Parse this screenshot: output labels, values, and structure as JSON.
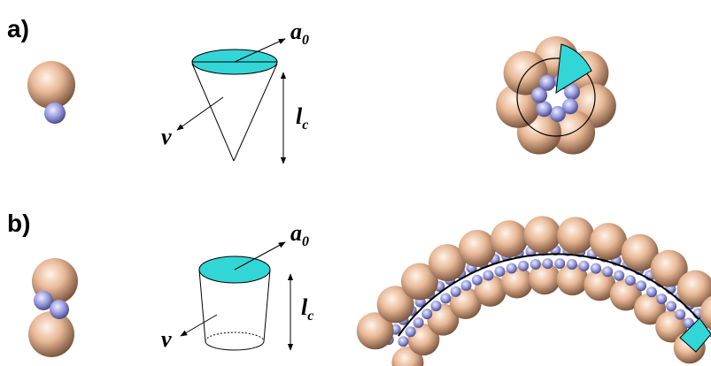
{
  "panels": [
    {
      "label": "a)",
      "area_symbol": "a",
      "area_subscript": "0",
      "volume_symbol": "v",
      "length_symbol": "l",
      "length_subscript": "c"
    },
    {
      "label": "b)",
      "area_symbol": "a",
      "area_subscript": "0",
      "volume_symbol": "v",
      "length_symbol": "l",
      "length_subscript": "c"
    }
  ]
}
